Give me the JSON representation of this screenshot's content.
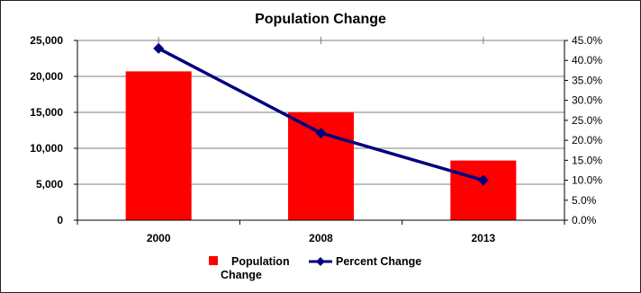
{
  "chart_data": {
    "type": "bar+line",
    "title": "Population Change",
    "categories": [
      "2000",
      "2008",
      "2013"
    ],
    "series": [
      {
        "name": "Population Change",
        "type": "bar",
        "axis": "left",
        "color": "#ff0000",
        "values": [
          20700,
          15000,
          8300
        ]
      },
      {
        "name": "Percent Change",
        "type": "line",
        "axis": "right",
        "color": "#000080",
        "values": [
          43.0,
          21.8,
          10.0
        ]
      }
    ],
    "left_axis": {
      "ylim": [
        0,
        25000
      ],
      "ticks": [
        "0",
        "5,000",
        "10,000",
        "15,000",
        "20,000",
        "25,000"
      ]
    },
    "right_axis": {
      "ylim": [
        0,
        45
      ],
      "ticks": [
        "0.0%",
        "5.0%",
        "10.0%",
        "15.0%",
        "20.0%",
        "25.0%",
        "30.0%",
        "35.0%",
        "40.0%",
        "45.0%"
      ]
    },
    "grid": true,
    "legend_position": "bottom",
    "legend": {
      "line1": [
        "Population",
        "Percent Change"
      ],
      "line2": "Change"
    }
  }
}
